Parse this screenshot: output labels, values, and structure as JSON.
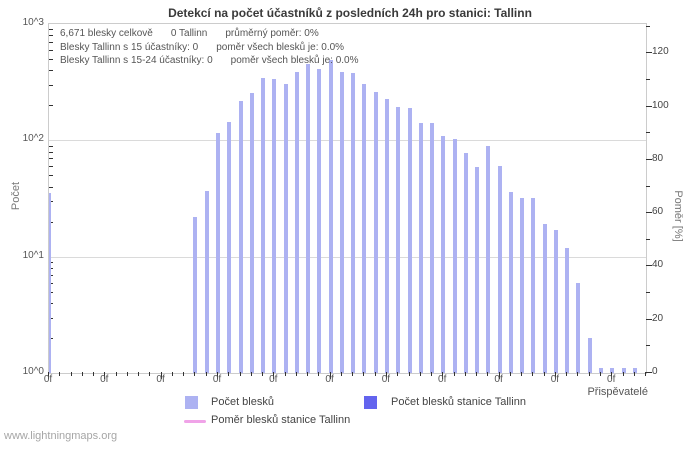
{
  "title": "Detekcí na počet účastníků z posledních 24h pro stanici: Tallinn",
  "annotations": {
    "l1a": "6,671 blesky celkově",
    "l1b": "0 Tallinn",
    "l1c": "průměrný poměr: 0%",
    "l2a": "Blesky Tallinn s 15 účastníky: 0",
    "l2b": "poměr všech blesků je: 0.0%",
    "l3a": "Blesky Tallinn s 15-24 účastníky: 0",
    "l3b": "poměr všech blesků je: 0.0%"
  },
  "axes": {
    "left_label": "Počet",
    "left_ticks": [
      "10^3",
      "10^2",
      "10^1",
      "10^0"
    ],
    "right_label": "Poměr [%]",
    "right_ticks": [
      0,
      20,
      40,
      60,
      80,
      100,
      120
    ],
    "right_max": 131,
    "x_label": "Přispěvatelé",
    "x_tick_label": "0f",
    "x_major_tick_count": 11,
    "x_minor_tick_count": 54
  },
  "legend": [
    {
      "label": "Počet blesků",
      "color": "#adb2f2",
      "type": "box"
    },
    {
      "label": "Počet blesků stanice Tallinn",
      "color": "#6364ee",
      "type": "box"
    },
    {
      "label": "Poměr blesků stanice Tallinn",
      "color": "#f0a3e8",
      "type": "line"
    }
  ],
  "footer": "www.lightningmaps.org",
  "colors": {
    "bar": "#adb2f2",
    "station_bar": "#6364ee",
    "ratio_line": "#f0a3e8",
    "grid": "#dadada",
    "frame": "#cccccc"
  },
  "chart_data": {
    "type": "bar",
    "title": "Detekcí na počet účastníků z posledních 24h pro stanici: Tallinn",
    "xlabel": "Přispěvatelé",
    "ylabel_left": "Počet",
    "ylabel_right": "Poměr [%]",
    "y_scale": "log10",
    "ylim": [
      1,
      1000
    ],
    "right_ylim": [
      0,
      131
    ],
    "grid": "horizontal-decades",
    "legend_position": "bottom",
    "total_flashes": 6671,
    "station_flashes": 0,
    "average_ratio_pct": 0,
    "series": [
      {
        "name": "Počet blesků",
        "points": [
          {
            "tick": 0,
            "value": 35
          },
          {
            "tick": 13,
            "value": 22
          },
          {
            "tick": 14,
            "value": 37
          },
          {
            "tick": 15,
            "value": 116
          },
          {
            "tick": 16,
            "value": 145
          },
          {
            "tick": 17,
            "value": 216
          },
          {
            "tick": 18,
            "value": 253
          },
          {
            "tick": 19,
            "value": 341
          },
          {
            "tick": 20,
            "value": 335
          },
          {
            "tick": 21,
            "value": 308
          },
          {
            "tick": 22,
            "value": 384
          },
          {
            "tick": 23,
            "value": 450
          },
          {
            "tick": 24,
            "value": 407
          },
          {
            "tick": 25,
            "value": 487
          },
          {
            "tick": 26,
            "value": 384
          },
          {
            "tick": 27,
            "value": 376
          },
          {
            "tick": 28,
            "value": 308
          },
          {
            "tick": 29,
            "value": 263
          },
          {
            "tick": 30,
            "value": 229
          },
          {
            "tick": 31,
            "value": 195
          },
          {
            "tick": 32,
            "value": 191
          },
          {
            "tick": 33,
            "value": 142
          },
          {
            "tick": 34,
            "value": 140
          },
          {
            "tick": 35,
            "value": 110
          },
          {
            "tick": 36,
            "value": 103
          },
          {
            "tick": 37,
            "value": 78
          },
          {
            "tick": 38,
            "value": 59
          },
          {
            "tick": 39,
            "value": 90
          },
          {
            "tick": 40,
            "value": 60
          },
          {
            "tick": 41,
            "value": 36
          },
          {
            "tick": 42,
            "value": 32
          },
          {
            "tick": 43,
            "value": 32
          },
          {
            "tick": 44,
            "value": 19
          },
          {
            "tick": 45,
            "value": 17
          },
          {
            "tick": 46,
            "value": 12
          },
          {
            "tick": 47,
            "value": 6
          },
          {
            "tick": 48,
            "value": 2
          },
          {
            "tick": 49,
            "value": 1.1
          },
          {
            "tick": 50,
            "value": 1.1
          },
          {
            "tick": 51,
            "value": 1.1
          },
          {
            "tick": 52,
            "value": 1.1
          }
        ]
      },
      {
        "name": "Počet blesků stanice Tallinn",
        "points": []
      },
      {
        "name": "Poměr blesků stanice Tallinn",
        "points": []
      }
    ]
  }
}
